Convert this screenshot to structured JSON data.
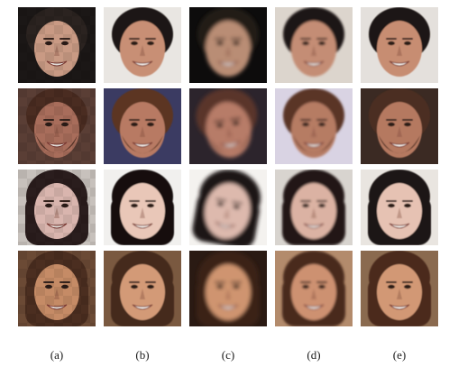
{
  "figure": {
    "column_labels": [
      "(a)",
      "(b)",
      "(c)",
      "(d)",
      "(e)"
    ]
  },
  "colors": {
    "background": "#ffffff",
    "label_text": "#1a1a1a"
  },
  "rows": [
    {
      "subject": "man with dark hair smiling",
      "tiles": [
        {
          "kind": "pixelated-low-res",
          "skin": "#c99a84",
          "hair": "#2b2320",
          "bg": "#1b1716"
        },
        {
          "kind": "high-res-reference",
          "skin": "#c88f74",
          "hair": "#1c1512",
          "bg": "#e9e6e2"
        },
        {
          "kind": "blurry-aligned-reconstruction",
          "skin": "#b98d74",
          "hair": "#211b18",
          "bg": "#0d0c0c"
        },
        {
          "kind": "reconstruction",
          "skin": "#c48d75",
          "hair": "#1e1714",
          "bg": "#dcd5cd"
        },
        {
          "kind": "ground-truth",
          "skin": "#c78d72",
          "hair": "#1d1512",
          "bg": "#e4e0dc"
        }
      ]
    },
    {
      "subject": "bearded man",
      "tiles": [
        {
          "kind": "pixelated-low-res",
          "skin": "#a86d5b",
          "hair": "#4a2c21",
          "bg": "#5a3e35"
        },
        {
          "kind": "high-res-reference",
          "skin": "#b87a63",
          "hair": "#5b3624",
          "bg": "#3b3b62"
        },
        {
          "kind": "blurry-aligned-reconstruction",
          "skin": "#b77c68",
          "hair": "#5a3529",
          "bg": "#2c242c"
        },
        {
          "kind": "reconstruction",
          "skin": "#b67b64",
          "hair": "#5a3426",
          "bg": "#d9d3e3"
        },
        {
          "kind": "ground-truth",
          "skin": "#b57961",
          "hair": "#4c2e21",
          "bg": "#3b2a23"
        }
      ]
    },
    {
      "subject": "woman with dark hair",
      "tiles": [
        {
          "kind": "pixelated-low-res",
          "skin": "#d9b5ae",
          "hair": "#2a1d1d",
          "bg": "#c7c1bc"
        },
        {
          "kind": "high-res-reference",
          "skin": "#e9c7b8",
          "hair": "#130d0c",
          "bg": "#f1f0ee"
        },
        {
          "kind": "blurry-aligned-reconstruction",
          "skin": "#ddb9ad",
          "hair": "#1b1313",
          "bg": "#f4f2ef"
        },
        {
          "kind": "reconstruction",
          "skin": "#dbb2a3",
          "hair": "#201716",
          "bg": "#d8d4cf"
        },
        {
          "kind": "ground-truth",
          "skin": "#e6c2b3",
          "hair": "#1d1312",
          "bg": "#e9e5e0"
        }
      ]
    },
    {
      "subject": "smiling woman",
      "tiles": [
        {
          "kind": "pixelated-low-res",
          "skin": "#c58b66",
          "hair": "#4b2e20",
          "bg": "#6b4a35"
        },
        {
          "kind": "high-res-reference",
          "skin": "#d39a77",
          "hair": "#442a1d",
          "bg": "#7a5940"
        },
        {
          "kind": "blurry-aligned-reconstruction",
          "skin": "#cf946f",
          "hair": "#3a2218",
          "bg": "#2a1a13"
        },
        {
          "kind": "reconstruction",
          "skin": "#cd9171",
          "hair": "#4a2c1f",
          "bg": "#b38b6c"
        },
        {
          "kind": "ground-truth",
          "skin": "#d29875",
          "hair": "#4b2c1f",
          "bg": "#8a6a4f"
        }
      ]
    }
  ]
}
